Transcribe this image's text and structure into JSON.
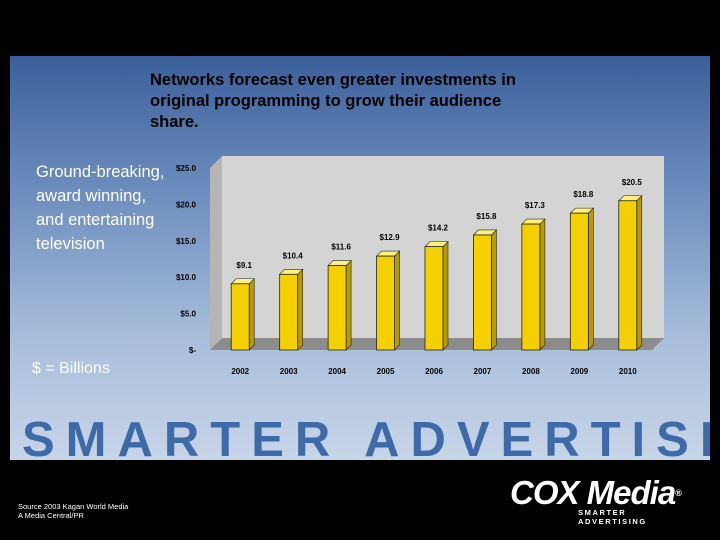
{
  "headline": "Networks forecast even greater investments in original programming to grow their audience share.",
  "side_text": "Ground-breaking, award winning, and entertaining television",
  "unit_note": "$ = Billions",
  "banner": "SMARTER ADVERTISING",
  "source": [
    "Source 2003 Kagan World Media",
    "A Media Central/PR"
  ],
  "logo": {
    "name": "COX Media",
    "registered": "®",
    "tagline": "SMARTER ADVERTISING"
  },
  "colors": {
    "bar": "#f5d000",
    "bar_side": "#b89b00",
    "plot_bg": "#d4d4d4",
    "floor": "#8c8c8c"
  },
  "chart_data": {
    "type": "bar",
    "categories": [
      "2002",
      "2003",
      "2004",
      "2005",
      "2006",
      "2007",
      "2008",
      "2009",
      "2010"
    ],
    "values": [
      9.1,
      10.4,
      11.6,
      12.9,
      14.2,
      15.8,
      17.3,
      18.8,
      20.5
    ],
    "value_labels": [
      "$9.1",
      "$10.4",
      "$11.6",
      "$12.9",
      "$14.2",
      "$15.8",
      "$17.3",
      "$18.8",
      "$20.5"
    ],
    "y_ticks": [
      0,
      5,
      10,
      15,
      20,
      25
    ],
    "y_tick_labels": [
      "$-",
      "$5.0",
      "$10.0",
      "$15.0",
      "$20.0",
      "$25.0"
    ],
    "ylim": [
      0,
      25
    ],
    "grid": false,
    "legend": "none"
  }
}
